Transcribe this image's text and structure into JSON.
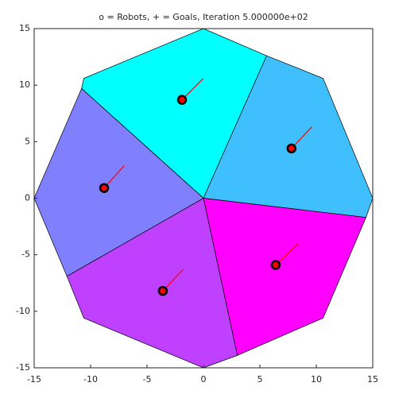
{
  "chart_data": {
    "type": "voronoi",
    "title": "o = Robots, + = Goals, Iteration 5.000000e+02",
    "xlim": [
      -15,
      15
    ],
    "ylim": [
      -15,
      15
    ],
    "xticks": [
      -15,
      -10,
      -5,
      0,
      5,
      10,
      15
    ],
    "yticks": [
      -15,
      -10,
      -5,
      0,
      5,
      10,
      15
    ],
    "regions": [
      {
        "color": "#00ffff",
        "x": [
          0,
          -10.8,
          -10.6,
          0,
          5.6
        ],
        "y": [
          0,
          9.7,
          10.6,
          15,
          12.6
        ]
      },
      {
        "color": "#40bfff",
        "x": [
          0,
          5.6,
          10.6,
          15,
          14.4
        ],
        "y": [
          0,
          12.6,
          10.6,
          0,
          -1.7
        ]
      },
      {
        "color": "#ff00ff",
        "x": [
          0,
          14.4,
          10.6,
          3
        ],
        "y": [
          0,
          -1.7,
          -10.6,
          -13.9
        ]
      },
      {
        "color": "#bf40ff",
        "x": [
          0,
          3,
          0,
          -10.6,
          -12.1
        ],
        "y": [
          0,
          -13.9,
          -15,
          -10.6,
          -6.9
        ]
      },
      {
        "color": "#8080ff",
        "x": [
          0,
          -12.1,
          -15,
          -10.8
        ],
        "y": [
          0,
          -6.9,
          0,
          9.7
        ]
      }
    ],
    "robots": {
      "x": [
        -1.9,
        7.8,
        -8.8,
        6.4,
        -3.6
      ],
      "y": [
        8.7,
        4.4,
        0.9,
        -5.9,
        -8.2
      ],
      "color": "#ff0000"
    },
    "goals": {
      "x": [
        0,
        9.6,
        -7,
        8.4,
        -1.8
      ],
      "y": [
        10.6,
        6.3,
        2.9,
        -4.0,
        -6.3
      ],
      "color": "#ff0000"
    }
  }
}
